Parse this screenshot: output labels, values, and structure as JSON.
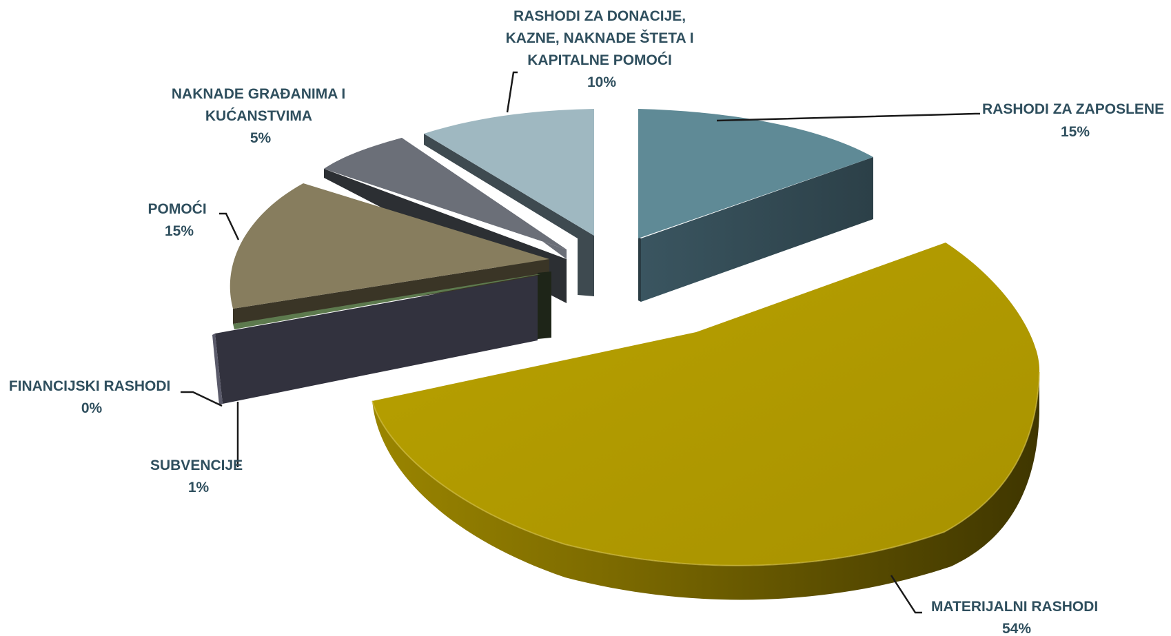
{
  "chart_data": {
    "type": "pie",
    "style": "3d-exploded",
    "slices": [
      {
        "key": "zaposlene",
        "label_lines": [
          "RASHODI ZA ZAPOSLENE"
        ],
        "value_label": "15%",
        "value": 15,
        "color": "#5f8a96",
        "side_color": "#334a52"
      },
      {
        "key": "materijalni",
        "label_lines": [
          "MATERIJALNI RASHODI"
        ],
        "value_label": "54%",
        "value": 54,
        "color": "#b09a00",
        "side_color": "#6e5f00"
      },
      {
        "key": "financijski",
        "label_lines": [
          "FINANCIJSKI RASHODI"
        ],
        "value_label": "0%",
        "value": 0,
        "color": "#3a3a4a",
        "side_color": "#1f1f2a"
      },
      {
        "key": "subvencije",
        "label_lines": [
          "SUBVENCIJE"
        ],
        "value_label": "1%",
        "value": 1,
        "color": "#5d7a4e",
        "side_color": "#2a3324"
      },
      {
        "key": "pomoci",
        "label_lines": [
          "POMOĆI"
        ],
        "value_label": "15%",
        "value": 15,
        "color": "#877d5e",
        "side_color": "#3a3526"
      },
      {
        "key": "gradanima",
        "label_lines": [
          "NAKNADE GRAĐANIMA I",
          "KUĆANSTVIMA"
        ],
        "value_label": "5%",
        "value": 5,
        "color": "#6b6f78",
        "side_color": "#2c2f33"
      },
      {
        "key": "donacije",
        "label_lines": [
          "RASHODI ZA DONACIJE,",
          "KAZNE, NAKNADE ŠTETA I",
          "KAPITALNE POMOĆI"
        ],
        "value_label": "10%",
        "value": 10,
        "color": "#9fb8c1",
        "side_color": "#3e4a50"
      }
    ]
  }
}
